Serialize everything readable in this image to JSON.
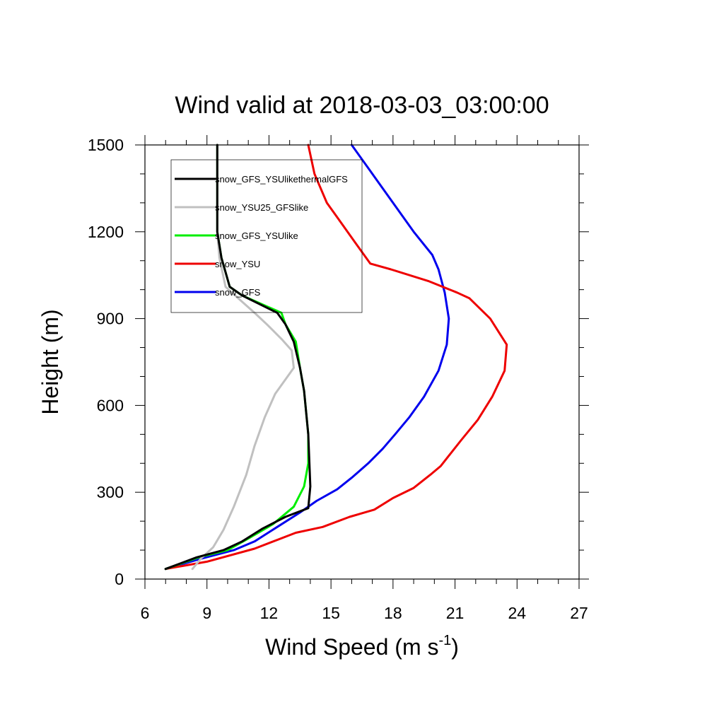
{
  "chart_data": {
    "type": "line",
    "title": "Wind valid at 2018-03-03_03:00:00",
    "xlabel": "Wind Speed (m s",
    "xlabel_sup": "-1",
    "xlabel_close": ")",
    "ylabel": "Height (m)",
    "xlim": [
      6,
      27
    ],
    "ylim": [
      0,
      1500
    ],
    "xticks": [
      6,
      9,
      12,
      15,
      18,
      21,
      24,
      27
    ],
    "yticks": [
      0,
      300,
      600,
      900,
      1200,
      1500
    ],
    "grid": false,
    "legend_position": "top-left",
    "series": [
      {
        "name": "snow_GFS_YSUlikethermalGFS",
        "color": "#000000",
        "points": [
          [
            7.0,
            35
          ],
          [
            8.5,
            75
          ],
          [
            9.8,
            100
          ],
          [
            10.7,
            130
          ],
          [
            11.7,
            175
          ],
          [
            12.8,
            215
          ],
          [
            13.9,
            245
          ],
          [
            14.0,
            320
          ],
          [
            13.9,
            500
          ],
          [
            13.7,
            650
          ],
          [
            13.5,
            730
          ],
          [
            13.2,
            820
          ],
          [
            12.8,
            880
          ],
          [
            12.4,
            920
          ],
          [
            10.7,
            980
          ],
          [
            10.1,
            1010
          ],
          [
            9.7,
            1110
          ],
          [
            9.5,
            1200
          ],
          [
            9.5,
            1500
          ]
        ]
      },
      {
        "name": "snow_YSU25_GFSlike",
        "color": "#c0c0c0",
        "points": [
          [
            8.3,
            35
          ],
          [
            8.7,
            70
          ],
          [
            9.3,
            110
          ],
          [
            9.8,
            170
          ],
          [
            10.3,
            250
          ],
          [
            10.9,
            360
          ],
          [
            11.3,
            460
          ],
          [
            11.8,
            560
          ],
          [
            12.3,
            640
          ],
          [
            12.8,
            690
          ],
          [
            13.2,
            730
          ],
          [
            13.1,
            790
          ],
          [
            12.6,
            830
          ],
          [
            11.9,
            880
          ],
          [
            11.3,
            920
          ],
          [
            10.2,
            990
          ],
          [
            9.9,
            1010
          ],
          [
            9.6,
            1110
          ],
          [
            9.5,
            1200
          ],
          [
            9.5,
            1500
          ]
        ]
      },
      {
        "name": "snow_GFS_YSUlike",
        "color": "#00ee00",
        "points": [
          [
            7.0,
            35
          ],
          [
            8.6,
            75
          ],
          [
            10.0,
            100
          ],
          [
            11.0,
            140
          ],
          [
            12.2,
            190
          ],
          [
            13.2,
            250
          ],
          [
            13.7,
            320
          ],
          [
            13.9,
            400
          ],
          [
            13.9,
            500
          ],
          [
            13.7,
            650
          ],
          [
            13.5,
            730
          ],
          [
            13.3,
            820
          ],
          [
            12.8,
            880
          ],
          [
            12.6,
            920
          ],
          [
            10.7,
            980
          ],
          [
            10.1,
            1010
          ],
          [
            9.7,
            1110
          ],
          [
            9.5,
            1200
          ],
          [
            9.5,
            1500
          ]
        ]
      },
      {
        "name": "snow_YSU",
        "color": "#ee0000",
        "points": [
          [
            7.0,
            35
          ],
          [
            9.0,
            60
          ],
          [
            11.3,
            105
          ],
          [
            13.3,
            160
          ],
          [
            14.6,
            180
          ],
          [
            15.9,
            215
          ],
          [
            17.1,
            240
          ],
          [
            18.0,
            280
          ],
          [
            19.0,
            315
          ],
          [
            19.8,
            360
          ],
          [
            20.3,
            390
          ],
          [
            21.3,
            480
          ],
          [
            22.1,
            550
          ],
          [
            22.8,
            630
          ],
          [
            23.4,
            720
          ],
          [
            23.5,
            810
          ],
          [
            22.7,
            900
          ],
          [
            21.7,
            970
          ],
          [
            21.1,
            990
          ],
          [
            19.7,
            1030
          ],
          [
            17.9,
            1070
          ],
          [
            16.9,
            1090
          ],
          [
            16.2,
            1160
          ],
          [
            15.3,
            1250
          ],
          [
            14.8,
            1300
          ],
          [
            14.2,
            1400
          ],
          [
            13.9,
            1500
          ]
        ]
      },
      {
        "name": "snow_GFS",
        "color": "#0000ee",
        "points": [
          [
            7.0,
            35
          ],
          [
            8.7,
            70
          ],
          [
            10.3,
            100
          ],
          [
            11.3,
            130
          ],
          [
            12.4,
            180
          ],
          [
            13.5,
            230
          ],
          [
            14.3,
            270
          ],
          [
            15.3,
            310
          ],
          [
            16.0,
            350
          ],
          [
            16.8,
            400
          ],
          [
            17.5,
            450
          ],
          [
            18.1,
            500
          ],
          [
            18.8,
            560
          ],
          [
            19.5,
            630
          ],
          [
            20.2,
            720
          ],
          [
            20.6,
            810
          ],
          [
            20.7,
            900
          ],
          [
            20.5,
            990
          ],
          [
            20.2,
            1070
          ],
          [
            19.9,
            1120
          ],
          [
            19.0,
            1200
          ],
          [
            18.0,
            1300
          ],
          [
            16.9,
            1410
          ],
          [
            16.0,
            1500
          ]
        ]
      }
    ]
  }
}
